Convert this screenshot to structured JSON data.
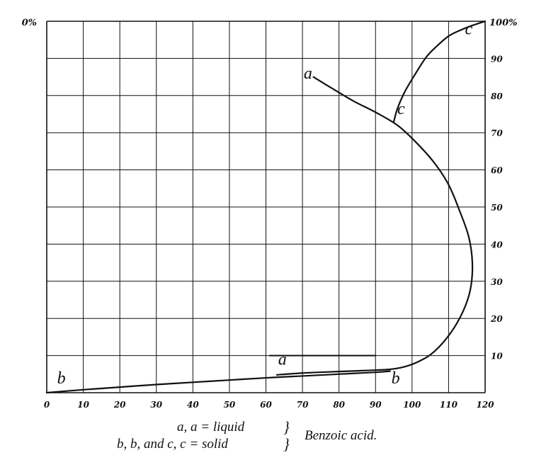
{
  "chart_data": {
    "type": "line",
    "x_ticks": [
      "0",
      "10",
      "20",
      "30",
      "40",
      "50",
      "60",
      "70",
      "80",
      "90",
      "100",
      "110",
      "120"
    ],
    "y_ticks_right": [
      "10",
      "20",
      "30",
      "40",
      "50",
      "60",
      "70",
      "80",
      "90"
    ],
    "y_top_left_label": "0%",
    "y_top_right_label": "100%",
    "xlim": [
      0,
      120
    ],
    "ylim": [
      0,
      100
    ],
    "grid": true,
    "series": [
      {
        "curve_label": "a",
        "points": [
          [
            73,
            85
          ],
          [
            78,
            82
          ],
          [
            84,
            78.5
          ],
          [
            90,
            75.5
          ],
          [
            96,
            72
          ],
          [
            101,
            67.5
          ],
          [
            106,
            62
          ],
          [
            110,
            56
          ],
          [
            113,
            49
          ],
          [
            115.5,
            42
          ],
          [
            116.5,
            35
          ],
          [
            116,
            28
          ],
          [
            114,
            22
          ],
          [
            110.5,
            16
          ],
          [
            106,
            11
          ],
          [
            102,
            8.5
          ],
          [
            98,
            7
          ],
          [
            94,
            6.3
          ],
          [
            88,
            6
          ],
          [
            80,
            5.7
          ],
          [
            70,
            5.3
          ],
          [
            63,
            4.8
          ]
        ]
      },
      {
        "curve_label": "b",
        "points": [
          [
            0,
            0
          ],
          [
            10,
            0.8
          ],
          [
            20,
            1.5
          ],
          [
            30,
            2.2
          ],
          [
            40,
            2.8
          ],
          [
            50,
            3.4
          ],
          [
            60,
            4
          ],
          [
            70,
            4.5
          ],
          [
            80,
            5
          ],
          [
            90,
            5.5
          ],
          [
            94,
            5.8
          ]
        ]
      },
      {
        "curve_label": "c",
        "points": [
          [
            95,
            73
          ],
          [
            96,
            76.5
          ],
          [
            98,
            81
          ],
          [
            101,
            86
          ],
          [
            104,
            90.5
          ],
          [
            107,
            93.5
          ],
          [
            110,
            96
          ],
          [
            113,
            97.5
          ],
          [
            116,
            98.7
          ],
          [
            120,
            100
          ]
        ]
      },
      {
        "curve_label": "",
        "points": [
          [
            61,
            10
          ],
          [
            90,
            10
          ]
        ]
      }
    ],
    "curve_labels": [
      {
        "text": "a",
        "x": 71.5,
        "y": 84.5
      },
      {
        "text": "a",
        "x": 64.5,
        "y": 7.5
      },
      {
        "text": "b",
        "x": 4,
        "y": 2.5
      },
      {
        "text": "b",
        "x": 95.5,
        "y": 2.5
      },
      {
        "text": "c",
        "x": 97,
        "y": 75
      },
      {
        "text": "c",
        "x": 115.5,
        "y": 96.5
      }
    ]
  },
  "legend": {
    "line1": "a, a = liquid",
    "line2": "b, b, and c, c = solid",
    "brace": "}",
    "substance": "Benzoic acid."
  }
}
